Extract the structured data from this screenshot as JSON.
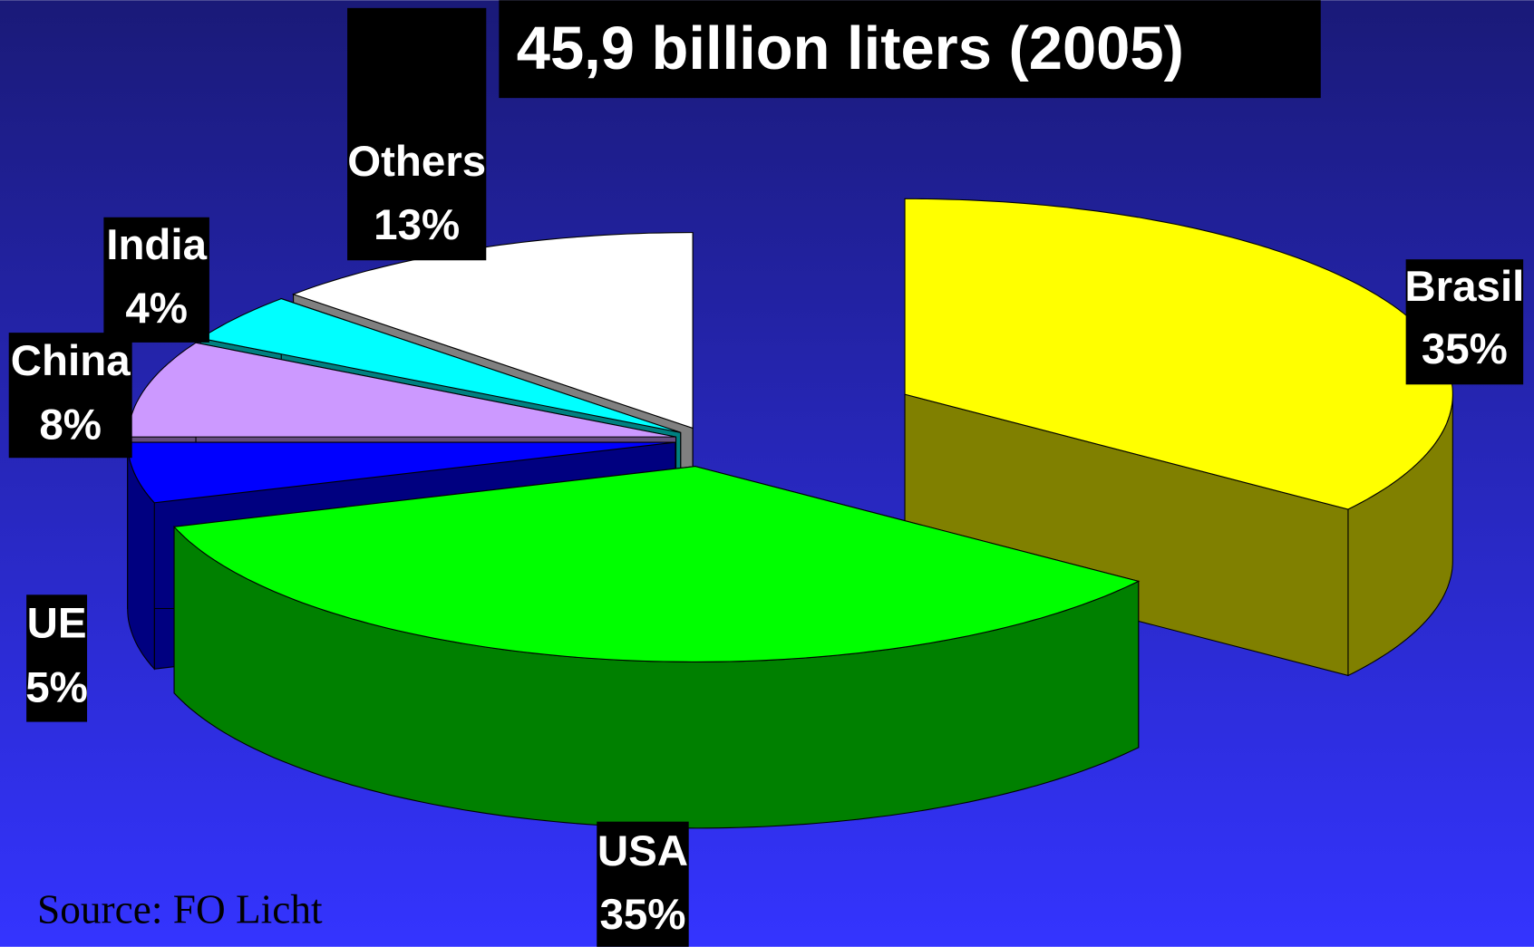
{
  "chart_data": {
    "type": "pie3d",
    "title": "45,9 billion liters (2005)",
    "categories": [
      "Brasil",
      "USA",
      "UE",
      "China",
      "India",
      "Others"
    ],
    "values": [
      35,
      35,
      5,
      8,
      4,
      13
    ],
    "value_labels": [
      "35%",
      "35%",
      "5%",
      "8%",
      "4%",
      "13%"
    ],
    "colors": [
      "#ffff00",
      "#00ff00",
      "#0000ff",
      "#cc99ff",
      "#00ffff",
      "#ffffff"
    ],
    "source": "Source: FO Licht"
  }
}
